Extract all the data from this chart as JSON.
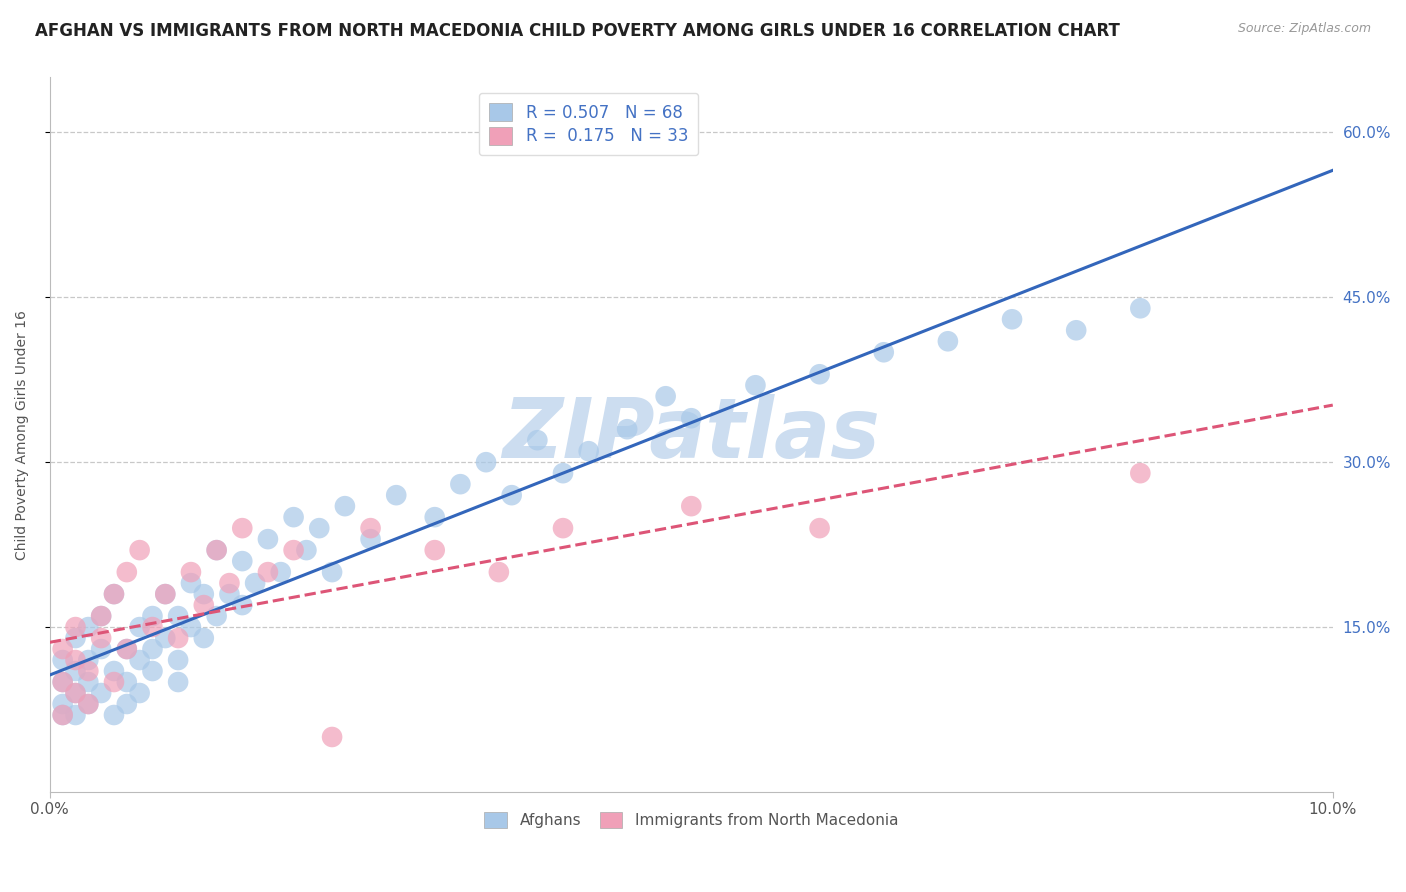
{
  "title": "AFGHAN VS IMMIGRANTS FROM NORTH MACEDONIA CHILD POVERTY AMONG GIRLS UNDER 16 CORRELATION CHART",
  "source": "Source: ZipAtlas.com",
  "ylabel": "Child Poverty Among Girls Under 16",
  "xlim": [
    0.0,
    0.1
  ],
  "ylim": [
    0.0,
    0.65
  ],
  "yticks": [
    0.15,
    0.3,
    0.45,
    0.6
  ],
  "ytick_labels": [
    "15.0%",
    "30.0%",
    "45.0%",
    "60.0%"
  ],
  "xtick_labels": [
    "0.0%",
    "10.0%"
  ],
  "grid_color": "#c8c8c8",
  "background_color": "#ffffff",
  "afghans": {
    "name": "Afghans",
    "R": 0.507,
    "N": 68,
    "dot_color": "#a8c8e8",
    "line_color": "#3366bb",
    "line_style": "solid",
    "x": [
      0.001,
      0.001,
      0.001,
      0.001,
      0.002,
      0.002,
      0.002,
      0.002,
      0.003,
      0.003,
      0.003,
      0.003,
      0.004,
      0.004,
      0.004,
      0.005,
      0.005,
      0.005,
      0.006,
      0.006,
      0.006,
      0.007,
      0.007,
      0.007,
      0.008,
      0.008,
      0.008,
      0.009,
      0.009,
      0.01,
      0.01,
      0.01,
      0.011,
      0.011,
      0.012,
      0.012,
      0.013,
      0.013,
      0.014,
      0.015,
      0.015,
      0.016,
      0.017,
      0.018,
      0.019,
      0.02,
      0.021,
      0.022,
      0.023,
      0.025,
      0.027,
      0.03,
      0.032,
      0.034,
      0.036,
      0.038,
      0.04,
      0.042,
      0.045,
      0.048,
      0.05,
      0.055,
      0.06,
      0.065,
      0.07,
      0.075,
      0.08,
      0.085
    ],
    "y": [
      0.08,
      0.1,
      0.12,
      0.07,
      0.09,
      0.11,
      0.14,
      0.07,
      0.1,
      0.12,
      0.08,
      0.15,
      0.09,
      0.13,
      0.16,
      0.11,
      0.07,
      0.18,
      0.1,
      0.13,
      0.08,
      0.12,
      0.15,
      0.09,
      0.13,
      0.16,
      0.11,
      0.14,
      0.18,
      0.12,
      0.16,
      0.1,
      0.15,
      0.19,
      0.14,
      0.18,
      0.16,
      0.22,
      0.18,
      0.17,
      0.21,
      0.19,
      0.23,
      0.2,
      0.25,
      0.22,
      0.24,
      0.2,
      0.26,
      0.23,
      0.27,
      0.25,
      0.28,
      0.3,
      0.27,
      0.32,
      0.29,
      0.31,
      0.33,
      0.36,
      0.34,
      0.37,
      0.38,
      0.4,
      0.41,
      0.43,
      0.42,
      0.44
    ]
  },
  "north_macedonia": {
    "name": "Immigrants from North Macedonia",
    "R": 0.175,
    "N": 33,
    "dot_color": "#f0a0b8",
    "line_color": "#dd5577",
    "line_style": "dashed",
    "x": [
      0.001,
      0.001,
      0.001,
      0.002,
      0.002,
      0.002,
      0.003,
      0.003,
      0.004,
      0.004,
      0.005,
      0.005,
      0.006,
      0.006,
      0.007,
      0.008,
      0.009,
      0.01,
      0.011,
      0.012,
      0.013,
      0.014,
      0.015,
      0.017,
      0.019,
      0.022,
      0.025,
      0.03,
      0.035,
      0.04,
      0.05,
      0.06,
      0.085
    ],
    "y": [
      0.1,
      0.13,
      0.07,
      0.12,
      0.15,
      0.09,
      0.11,
      0.08,
      0.14,
      0.16,
      0.1,
      0.18,
      0.13,
      0.2,
      0.22,
      0.15,
      0.18,
      0.14,
      0.2,
      0.17,
      0.22,
      0.19,
      0.24,
      0.2,
      0.22,
      0.05,
      0.24,
      0.22,
      0.2,
      0.24,
      0.26,
      0.24,
      0.29
    ]
  },
  "watermark": "ZIPatlas",
  "watermark_color": "#ccddf0",
  "title_fontsize": 12,
  "axis_label_fontsize": 10,
  "tick_fontsize": 11,
  "legend_fontsize": 12
}
